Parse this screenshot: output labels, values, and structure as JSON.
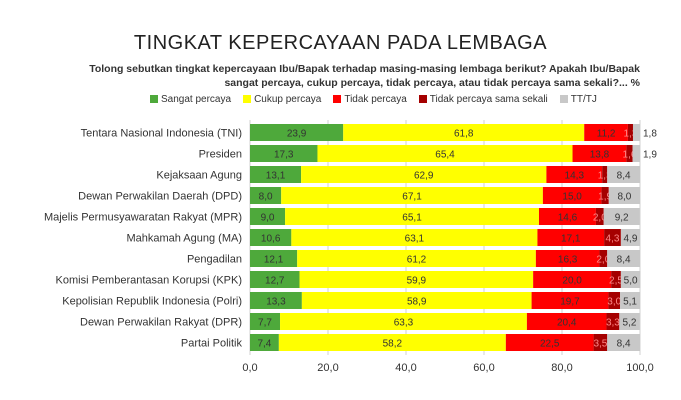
{
  "chart_data": {
    "type": "bar",
    "stacked": true,
    "orientation": "horizontal",
    "title": "TINGKAT KEPERCAYAAN PADA LEMBAGA",
    "subtitle": "Tolong sebutkan tingkat kepercayaan Ibu/Bapak terhadap masing-masing lembaga berikut? Apakah Ibu/Bapak sangat percaya, cukup percaya, tidak percaya, atau tidak percaya sama sekali?... %",
    "categories": [
      "Tentara Nasional Indonesia (TNI)",
      "Presiden",
      "Kejaksaan Agung",
      "Dewan Perwakilan Daerah (DPD)",
      "Majelis Permusyawaratan Rakyat (MPR)",
      "Mahkamah Agung (MA)",
      "Pengadilan",
      "Komisi Pemberantasan Korupsi (KPK)",
      "Kepolisian Republik Indonesia (Polri)",
      "Dewan Perwakilan Rakyat (DPR)",
      "Partai Politik"
    ],
    "series": [
      {
        "name": "Sangat percaya",
        "color": "#4ea93b",
        "values": [
          23.9,
          17.3,
          13.1,
          8.0,
          9.0,
          10.6,
          12.1,
          12.7,
          13.3,
          7.7,
          7.4
        ]
      },
      {
        "name": "Cukup percaya",
        "color": "#ffff00",
        "values": [
          61.8,
          65.4,
          62.9,
          67.1,
          65.1,
          63.1,
          61.2,
          59.9,
          58.9,
          63.3,
          58.2
        ]
      },
      {
        "name": "Tidak percaya",
        "color": "#ff0000",
        "values": [
          11.2,
          13.8,
          14.3,
          15.0,
          14.6,
          17.1,
          16.3,
          20.0,
          19.7,
          20.4,
          22.5
        ]
      },
      {
        "name": "Tidak percaya sama sekali",
        "color": "#a50000",
        "values": [
          1.3,
          1.6,
          1.3,
          1.9,
          2.0,
          4.3,
          2.0,
          2.5,
          3.0,
          3.3,
          3.5
        ]
      },
      {
        "name": "TT/TJ",
        "color": "#c8c8c8",
        "values": [
          1.8,
          1.9,
          8.4,
          8.0,
          9.2,
          4.9,
          8.4,
          5.0,
          5.1,
          5.2,
          8.4
        ]
      }
    ],
    "xlim": [
      0,
      100
    ],
    "xticks": [
      "0,0",
      "20,0",
      "40,0",
      "60,0",
      "80,0",
      "100,0"
    ],
    "grid": true,
    "legend": "top"
  }
}
